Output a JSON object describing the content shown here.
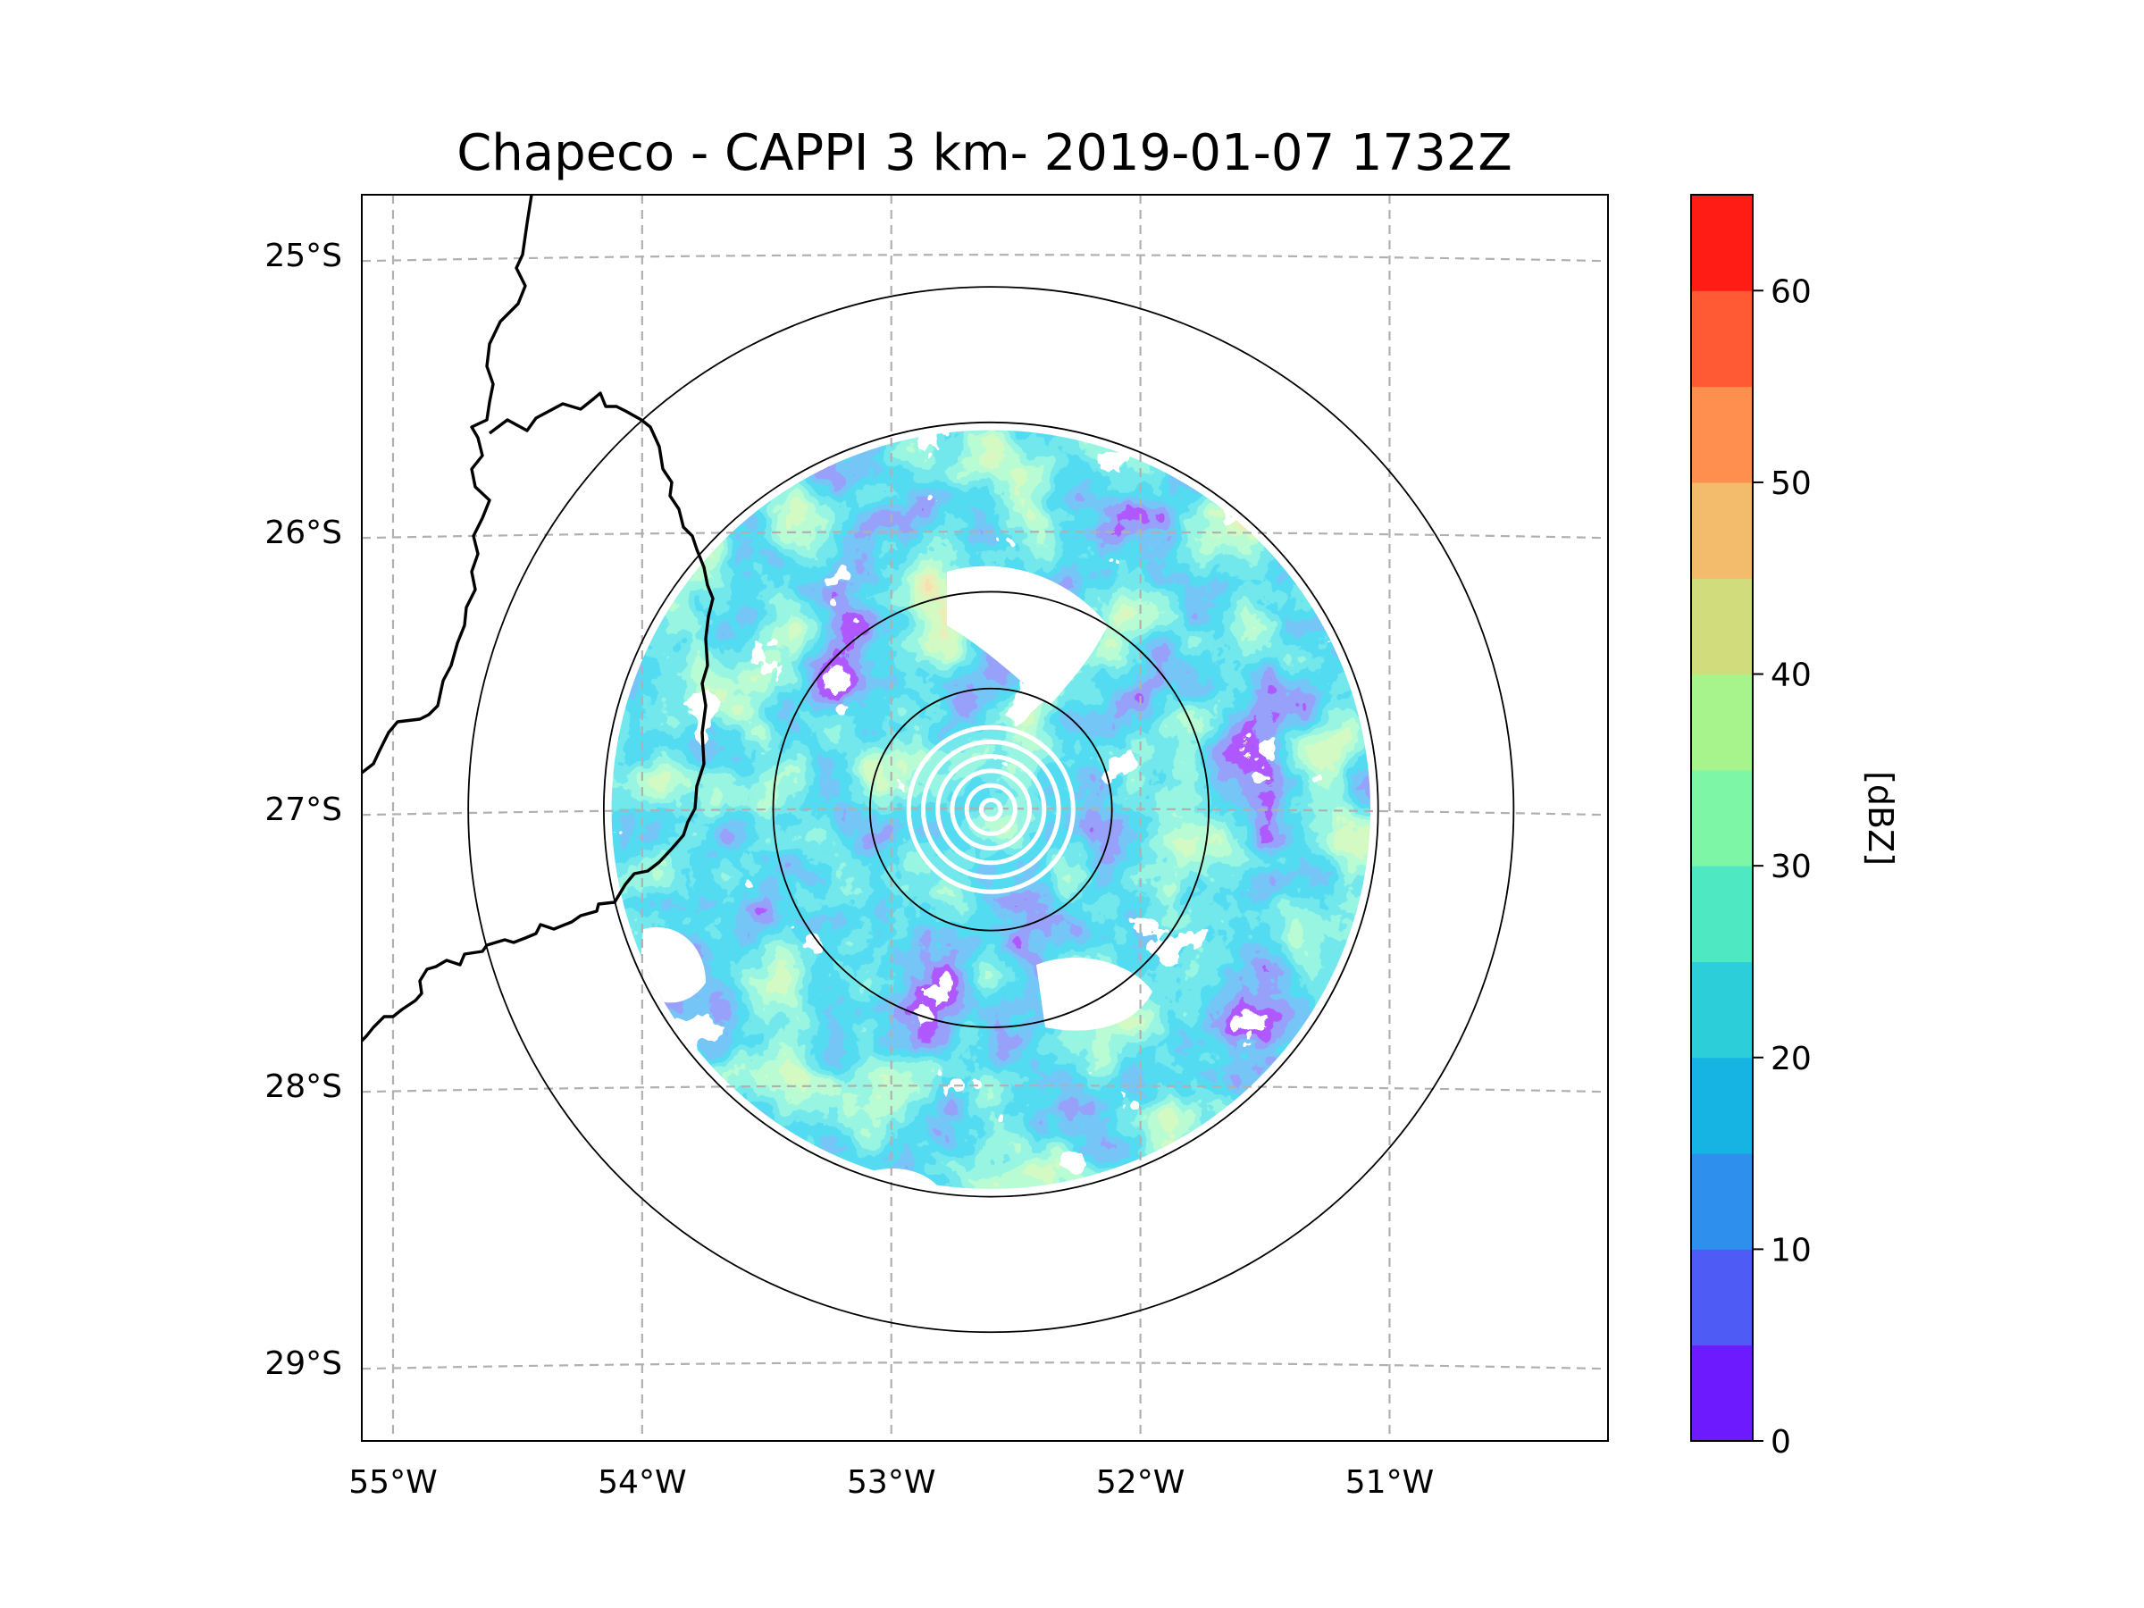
{
  "title": "Chapeco - CAPPI 3 km- 2019-01-07 1732Z",
  "map": {
    "projection": "plate-carree (approx.)",
    "lon_range": [
      -55.2,
      -50.05
    ],
    "lat_range": [
      -29.28,
      -24.78
    ],
    "lon_ticks": [
      {
        "value": -55,
        "label": "55°W"
      },
      {
        "value": -54,
        "label": "54°W"
      },
      {
        "value": -53,
        "label": "53°W"
      },
      {
        "value": -52,
        "label": "52°W"
      },
      {
        "value": -51,
        "label": "51°W"
      }
    ],
    "lat_ticks": [
      {
        "value": -25,
        "label": "25°S"
      },
      {
        "value": -26,
        "label": "26°S"
      },
      {
        "value": -27,
        "label": "27°S"
      },
      {
        "value": -28,
        "label": "28°S"
      },
      {
        "value": -29,
        "label": "29°S"
      }
    ],
    "radar_center": {
      "lon": -52.6,
      "lat": -27.0
    },
    "range_rings_deg": [
      0.5,
      1.6,
      2.16
    ]
  },
  "colorbar": {
    "label": "[dBZ]",
    "min": 0,
    "max": 65,
    "tick_values": [
      0,
      10,
      20,
      30,
      40,
      50,
      60
    ],
    "tick_labels": [
      "0",
      "10",
      "20",
      "30",
      "40",
      "50",
      "60"
    ],
    "colors": [
      "#6e1aff",
      "#4e5cf5",
      "#2f8fec",
      "#16b4e3",
      "#2ccfd9",
      "#4ee8c3",
      "#7df7a6",
      "#a8f48c",
      "#d1dc7d",
      "#f2bc6c",
      "#fe8f4f",
      "#ff5a33",
      "#ff1c15"
    ]
  },
  "colors": {
    "grid": "#b0b0b0",
    "coastline": "#000000",
    "ring": "#000000"
  }
}
